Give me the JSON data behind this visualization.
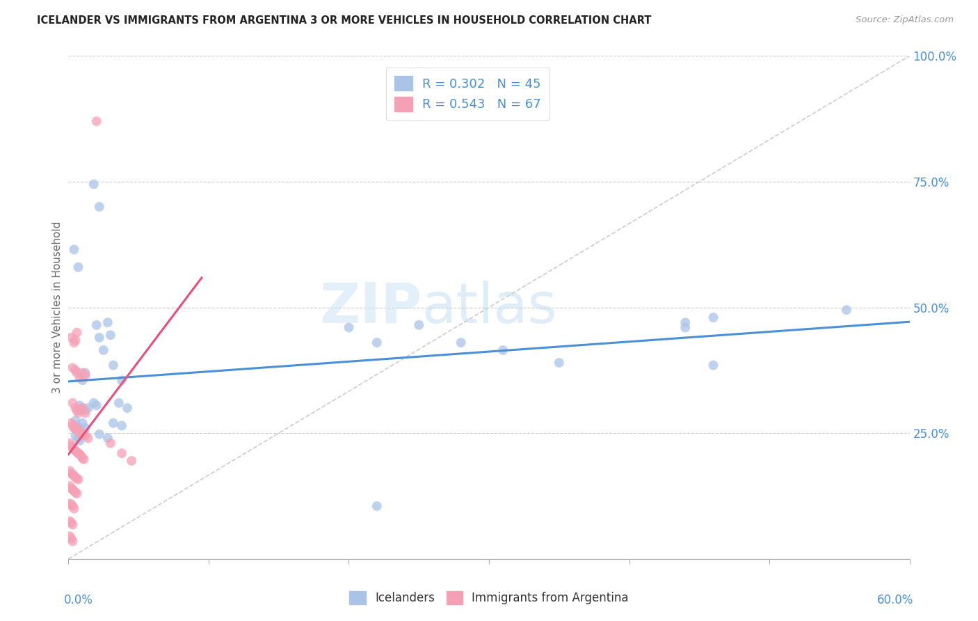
{
  "title": "ICELANDER VS IMMIGRANTS FROM ARGENTINA 3 OR MORE VEHICLES IN HOUSEHOLD CORRELATION CHART",
  "source": "Source: ZipAtlas.com",
  "ylabel": "3 or more Vehicles in Household",
  "ytick_values": [
    0.0,
    0.25,
    0.5,
    0.75,
    1.0
  ],
  "ytick_labels": [
    "",
    "25.0%",
    "50.0%",
    "75.0%",
    "100.0%"
  ],
  "xmin": 0.0,
  "xmax": 0.6,
  "ymin": 0.0,
  "ymax": 1.0,
  "legend_blue_label": "Icelanders",
  "legend_pink_label": "Immigrants from Argentina",
  "R_blue": "R = 0.302",
  "N_blue": "N = 45",
  "R_pink": "R = 0.543",
  "N_pink": "N = 67",
  "watermark_zip": "ZIP",
  "watermark_atlas": "atlas",
  "blue_color": "#aac4e8",
  "pink_color": "#f5a0b5",
  "blue_line_color": "#4a90d9",
  "pink_line_color": "#e8507a",
  "ytick_color": "#4a90d9",
  "xtick_color": "#4a90d9",
  "blue_scatter": [
    [
      0.004,
      0.615
    ],
    [
      0.007,
      0.58
    ],
    [
      0.018,
      0.745
    ],
    [
      0.022,
      0.7
    ],
    [
      0.02,
      0.465
    ],
    [
      0.022,
      0.44
    ],
    [
      0.025,
      0.415
    ],
    [
      0.028,
      0.47
    ],
    [
      0.03,
      0.445
    ],
    [
      0.01,
      0.355
    ],
    [
      0.012,
      0.37
    ],
    [
      0.032,
      0.385
    ],
    [
      0.038,
      0.355
    ],
    [
      0.008,
      0.305
    ],
    [
      0.01,
      0.3
    ],
    [
      0.012,
      0.295
    ],
    [
      0.014,
      0.3
    ],
    [
      0.018,
      0.31
    ],
    [
      0.02,
      0.305
    ],
    [
      0.036,
      0.31
    ],
    [
      0.042,
      0.3
    ],
    [
      0.005,
      0.275
    ],
    [
      0.006,
      0.265
    ],
    [
      0.008,
      0.26
    ],
    [
      0.01,
      0.27
    ],
    [
      0.012,
      0.26
    ],
    [
      0.032,
      0.27
    ],
    [
      0.038,
      0.265
    ],
    [
      0.005,
      0.245
    ],
    [
      0.007,
      0.24
    ],
    [
      0.008,
      0.235
    ],
    [
      0.022,
      0.248
    ],
    [
      0.028,
      0.24
    ],
    [
      0.2,
      0.46
    ],
    [
      0.22,
      0.43
    ],
    [
      0.25,
      0.465
    ],
    [
      0.28,
      0.43
    ],
    [
      0.31,
      0.415
    ],
    [
      0.35,
      0.39
    ],
    [
      0.44,
      0.46
    ],
    [
      0.46,
      0.48
    ],
    [
      0.44,
      0.47
    ],
    [
      0.46,
      0.385
    ],
    [
      0.555,
      0.495
    ],
    [
      0.22,
      0.105
    ]
  ],
  "pink_scatter": [
    [
      0.02,
      0.87
    ],
    [
      0.002,
      0.44
    ],
    [
      0.004,
      0.43
    ],
    [
      0.005,
      0.435
    ],
    [
      0.006,
      0.45
    ],
    [
      0.003,
      0.38
    ],
    [
      0.005,
      0.375
    ],
    [
      0.006,
      0.37
    ],
    [
      0.008,
      0.36
    ],
    [
      0.01,
      0.37
    ],
    [
      0.012,
      0.365
    ],
    [
      0.003,
      0.31
    ],
    [
      0.005,
      0.3
    ],
    [
      0.006,
      0.295
    ],
    [
      0.007,
      0.29
    ],
    [
      0.008,
      0.295
    ],
    [
      0.01,
      0.3
    ],
    [
      0.012,
      0.29
    ],
    [
      0.002,
      0.27
    ],
    [
      0.003,
      0.265
    ],
    [
      0.004,
      0.26
    ],
    [
      0.005,
      0.258
    ],
    [
      0.006,
      0.26
    ],
    [
      0.007,
      0.255
    ],
    [
      0.008,
      0.25
    ],
    [
      0.009,
      0.248
    ],
    [
      0.01,
      0.25
    ],
    [
      0.011,
      0.248
    ],
    [
      0.012,
      0.245
    ],
    [
      0.014,
      0.24
    ],
    [
      0.001,
      0.23
    ],
    [
      0.002,
      0.225
    ],
    [
      0.003,
      0.22
    ],
    [
      0.004,
      0.218
    ],
    [
      0.005,
      0.215
    ],
    [
      0.006,
      0.212
    ],
    [
      0.007,
      0.21
    ],
    [
      0.008,
      0.208
    ],
    [
      0.009,
      0.205
    ],
    [
      0.01,
      0.2
    ],
    [
      0.011,
      0.198
    ],
    [
      0.001,
      0.175
    ],
    [
      0.002,
      0.17
    ],
    [
      0.003,
      0.168
    ],
    [
      0.004,
      0.165
    ],
    [
      0.005,
      0.162
    ],
    [
      0.006,
      0.16
    ],
    [
      0.007,
      0.158
    ],
    [
      0.001,
      0.145
    ],
    [
      0.002,
      0.14
    ],
    [
      0.003,
      0.138
    ],
    [
      0.004,
      0.135
    ],
    [
      0.005,
      0.132
    ],
    [
      0.006,
      0.13
    ],
    [
      0.001,
      0.11
    ],
    [
      0.002,
      0.108
    ],
    [
      0.003,
      0.105
    ],
    [
      0.004,
      0.1
    ],
    [
      0.001,
      0.075
    ],
    [
      0.002,
      0.072
    ],
    [
      0.003,
      0.068
    ],
    [
      0.001,
      0.045
    ],
    [
      0.002,
      0.04
    ],
    [
      0.003,
      0.035
    ],
    [
      0.03,
      0.23
    ],
    [
      0.038,
      0.21
    ],
    [
      0.045,
      0.195
    ]
  ]
}
